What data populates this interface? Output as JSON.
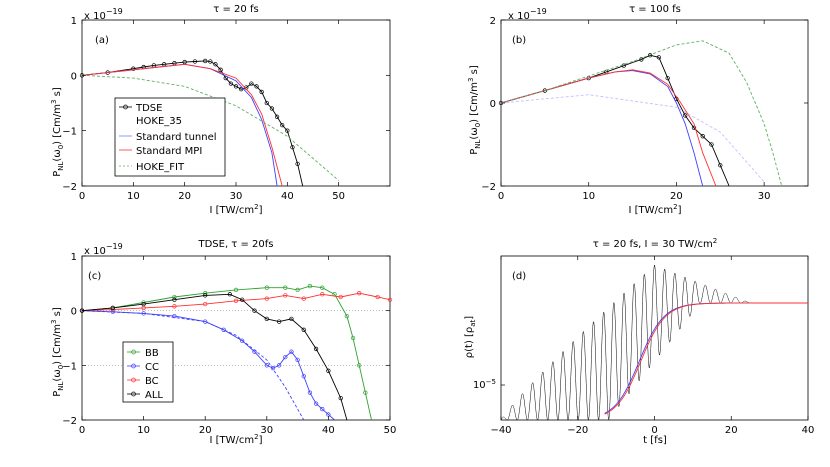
{
  "chart_data": [
    {
      "type": "line",
      "panel_label": "(a)",
      "title": "τ = 20 fs",
      "exponent_label": "x 10",
      "exponent_power": "−19",
      "ylabel": "P_NL(ω_0) [Cm/m^3 s]",
      "xlabel": "I [TW/cm^2]",
      "xlim": [
        0,
        60
      ],
      "ylim": [
        -2,
        1
      ],
      "xticks": [
        "0",
        "10",
        "20",
        "30",
        "40",
        "50"
      ],
      "yticks": [
        "−2",
        "−1",
        "0",
        "1"
      ],
      "legend": [
        "TDSE",
        "HOKE_35",
        "Standard tunnel",
        "Standard MPI",
        "HOKE_FIT"
      ],
      "series": [
        {
          "name": "TDSE",
          "color": "#000000",
          "markers": true,
          "x": [
            0,
            5,
            10,
            12,
            14,
            16,
            18,
            20,
            22,
            24,
            25,
            26,
            27,
            28,
            29,
            30,
            31,
            32,
            33,
            34,
            35,
            36,
            37,
            38,
            39,
            40,
            41,
            42,
            43
          ],
          "y": [
            0,
            0.05,
            0.12,
            0.15,
            0.18,
            0.2,
            0.22,
            0.24,
            0.25,
            0.26,
            0.25,
            0.2,
            0.1,
            -0.05,
            -0.15,
            -0.2,
            -0.25,
            -0.22,
            -0.15,
            -0.2,
            -0.3,
            -0.5,
            -0.6,
            -0.75,
            -0.9,
            -1.0,
            -1.3,
            -1.6,
            -2.0
          ]
        },
        {
          "name": "Standard tunnel",
          "color": "#4040ff",
          "x": [
            0,
            5,
            10,
            15,
            20,
            25,
            30,
            33,
            35,
            37,
            38
          ],
          "y": [
            0,
            0.05,
            0.1,
            0.15,
            0.2,
            0.12,
            -0.1,
            -0.4,
            -0.8,
            -1.4,
            -2.0
          ]
        },
        {
          "name": "Standard MPI",
          "color": "#ff3030",
          "x": [
            0,
            5,
            10,
            15,
            20,
            25,
            30,
            33,
            35,
            37,
            39
          ],
          "y": [
            0,
            0.05,
            0.1,
            0.15,
            0.2,
            0.12,
            -0.05,
            -0.35,
            -0.7,
            -1.3,
            -2.0
          ]
        },
        {
          "name": "HOKE_FIT",
          "color": "#60b060",
          "dashed": true,
          "x": [
            0,
            10,
            20,
            30,
            40,
            50
          ],
          "y": [
            0,
            -0.05,
            -0.2,
            -0.55,
            -1.1,
            -1.9
          ]
        }
      ]
    },
    {
      "type": "line",
      "panel_label": "(b)",
      "title": "τ = 100 fs",
      "exponent_label": "x 10",
      "exponent_power": "−19",
      "ylabel": "P_NL(ω_0) [Cm/m^3 s]",
      "xlabel": "I [TW/cm^2]",
      "xlim": [
        0,
        35
      ],
      "ylim": [
        -2,
        2
      ],
      "xticks": [
        "0",
        "10",
        "20",
        "30"
      ],
      "yticks": [
        "−2",
        "0",
        "2"
      ],
      "series": [
        {
          "name": "TDSE",
          "color": "#000000",
          "markers": true,
          "x": [
            0,
            5,
            10,
            12,
            14,
            16,
            17,
            18,
            19,
            20,
            21,
            22,
            23,
            24,
            25,
            26
          ],
          "y": [
            0,
            0.3,
            0.6,
            0.75,
            0.9,
            1.05,
            1.15,
            1.1,
            0.6,
            0.1,
            -0.3,
            -0.6,
            -0.8,
            -1.0,
            -1.5,
            -2.0
          ]
        },
        {
          "name": "Standard tunnel",
          "color": "#4040ff",
          "x": [
            0,
            5,
            10,
            13,
            15,
            17,
            19,
            20,
            21,
            22,
            23
          ],
          "y": [
            0,
            0.3,
            0.6,
            0.75,
            0.78,
            0.7,
            0.4,
            0.0,
            -0.5,
            -1.2,
            -2.0
          ]
        },
        {
          "name": "Standard MPI",
          "color": "#ff3030",
          "x": [
            0,
            5,
            10,
            13,
            15,
            17,
            19,
            20.5,
            22,
            23,
            24.5
          ],
          "y": [
            0,
            0.3,
            0.6,
            0.75,
            0.8,
            0.72,
            0.45,
            0.0,
            -0.5,
            -1.2,
            -2.0
          ]
        },
        {
          "name": "HOKE_35",
          "color": "#60b060",
          "dashed": true,
          "x": [
            0,
            5,
            10,
            15,
            20,
            23,
            26,
            28,
            30,
            31,
            32
          ],
          "y": [
            0,
            0.3,
            0.65,
            1.0,
            1.4,
            1.5,
            1.2,
            0.5,
            -0.5,
            -1.2,
            -2.0
          ]
        },
        {
          "name": "HOKE_FIT",
          "color": "#c0c0ff",
          "dashed": true,
          "x": [
            0,
            10,
            20,
            25,
            30
          ],
          "y": [
            0,
            0.2,
            -0.1,
            -0.7,
            -1.9
          ]
        }
      ]
    },
    {
      "type": "line",
      "panel_label": "(c)",
      "title": "TDSE, τ = 20fs",
      "exponent_label": "x 10",
      "exponent_power": "−19",
      "ylabel": "P_NL(ω_0) [Cm/m^3 s]",
      "xlabel": "I [TW/cm^2]",
      "xlim": [
        0,
        50
      ],
      "ylim": [
        -2,
        1
      ],
      "xticks": [
        "0",
        "10",
        "20",
        "30",
        "40",
        "50"
      ],
      "yticks": [
        "−2",
        "−1",
        "0",
        "1"
      ],
      "legend": [
        "BB",
        "CC",
        "BC",
        "ALL"
      ],
      "series": [
        {
          "name": "BB",
          "color": "#30a030",
          "markers": true,
          "x": [
            0,
            5,
            10,
            15,
            20,
            25,
            30,
            33,
            35,
            37,
            39,
            41,
            43,
            44,
            45,
            46,
            47
          ],
          "y": [
            0,
            0.05,
            0.15,
            0.25,
            0.32,
            0.38,
            0.42,
            0.42,
            0.38,
            0.45,
            0.42,
            0.3,
            -0.1,
            -0.5,
            -1.0,
            -1.5,
            -2.0
          ]
        },
        {
          "name": "CC",
          "color": "#4040ff",
          "markers": true,
          "x": [
            0,
            5,
            10,
            15,
            20,
            23,
            26,
            28,
            30,
            31,
            32,
            33,
            34,
            35,
            36,
            37,
            38,
            39,
            40,
            41
          ],
          "y": [
            0,
            -0.02,
            -0.05,
            -0.1,
            -0.2,
            -0.35,
            -0.55,
            -0.75,
            -1.0,
            -1.05,
            -1.0,
            -0.85,
            -0.75,
            -0.9,
            -1.2,
            -1.5,
            -1.7,
            -1.8,
            -1.9,
            -2.0
          ]
        },
        {
          "name": "CC",
          "color": "#4040ff",
          "dashed": true,
          "x": [
            0,
            10,
            20,
            25,
            30,
            33,
            36
          ],
          "y": [
            0,
            -0.05,
            -0.2,
            -0.45,
            -0.9,
            -1.4,
            -2.0
          ]
        },
        {
          "name": "BC",
          "color": "#ff3030",
          "markers": true,
          "x": [
            0,
            5,
            10,
            15,
            20,
            25,
            30,
            33,
            36,
            39,
            42,
            45,
            48,
            50
          ],
          "y": [
            0,
            0.02,
            0.05,
            0.08,
            0.12,
            0.18,
            0.22,
            0.28,
            0.22,
            0.3,
            0.25,
            0.32,
            0.25,
            0.2
          ]
        },
        {
          "name": "ALL",
          "color": "#000000",
          "markers": true,
          "x": [
            0,
            5,
            10,
            15,
            20,
            24,
            26,
            28,
            30,
            32,
            34,
            36,
            38,
            40,
            42,
            43
          ],
          "y": [
            0,
            0.05,
            0.12,
            0.2,
            0.28,
            0.3,
            0.2,
            0.0,
            -0.15,
            -0.2,
            -0.15,
            -0.35,
            -0.7,
            -1.1,
            -1.6,
            -2.0
          ]
        }
      ]
    },
    {
      "type": "line",
      "panel_label": "(d)",
      "title": "τ = 20 fs, I = 30 TW/cm^2",
      "ylabel": "ρ(t) [ρ_at]",
      "xlabel": "t [fs]",
      "xlim": [
        -40,
        40
      ],
      "yscale": "log",
      "yticks": [
        "10^−5"
      ],
      "series": [
        {
          "name": "oscillating density",
          "color": "#000000",
          "oscillating": true
        },
        {
          "name": "smooth density (blue)",
          "color": "#4040ff"
        },
        {
          "name": "smooth density (red)",
          "color": "#ff3030"
        }
      ]
    }
  ]
}
